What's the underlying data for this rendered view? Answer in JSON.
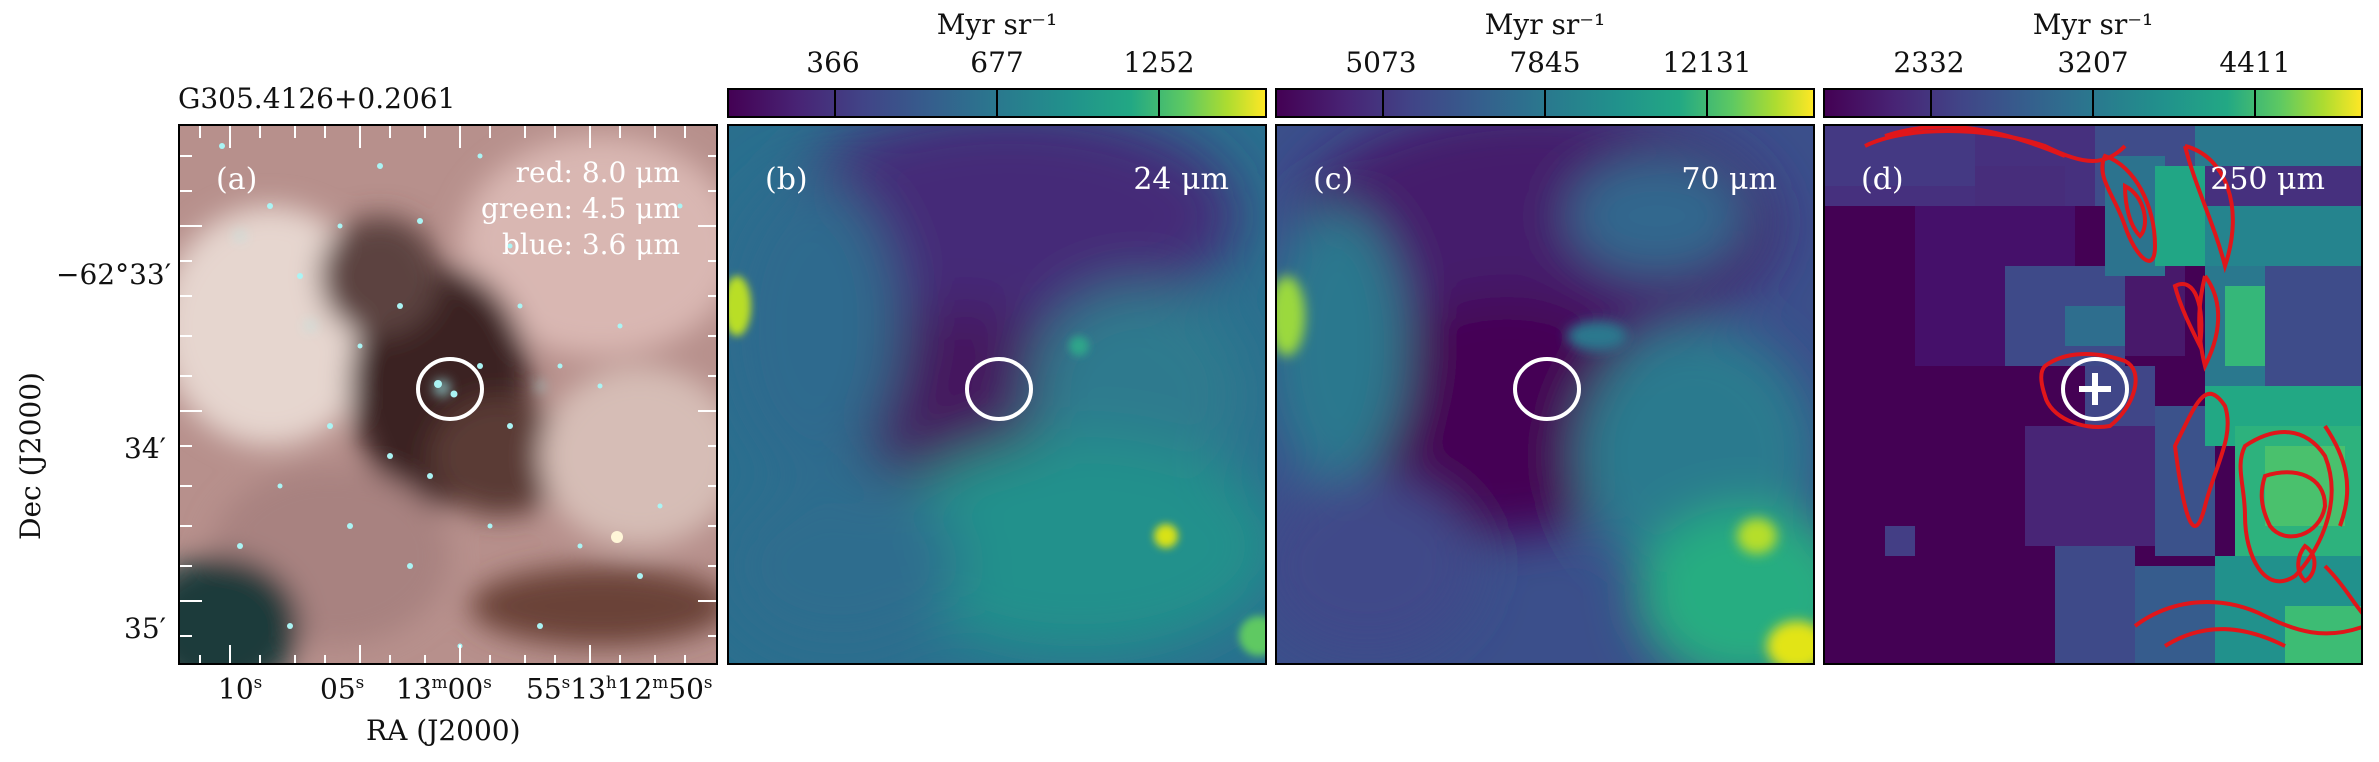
{
  "source_name": "G305.4126+0.2061",
  "panels": [
    {
      "label": "(a)",
      "rgb": {
        "red": "red: 8.0 μm",
        "green": "green: 4.5 μm",
        "blue": "blue: 3.6 μm"
      }
    },
    {
      "label": "(b)",
      "band": "24 μm",
      "colorbar_unit": "Myr sr⁻¹",
      "colorbar_ticks": [
        "366",
        "677",
        "1252"
      ]
    },
    {
      "label": "(c)",
      "band": "70 μm",
      "colorbar_unit": "Myr sr⁻¹",
      "colorbar_ticks": [
        "5073",
        "7845",
        "12131"
      ]
    },
    {
      "label": "(d)",
      "band": "250 μm",
      "colorbar_unit": "Myr sr⁻¹",
      "colorbar_ticks": [
        "2332",
        "3207",
        "4411"
      ]
    }
  ],
  "axes": {
    "ylabel": "Dec (J2000)",
    "yticks": [
      "−62°33′",
      "34′",
      "35′"
    ],
    "xlabel": "RA (J2000)",
    "xticks": [
      {
        "num": "10",
        "unit": "s"
      },
      {
        "num": "05",
        "unit": "s"
      },
      {
        "num": "13",
        "unit": "m",
        "rest": "00",
        "unit2": "s"
      },
      {
        "num": "55",
        "unit": "s",
        "rest": "13",
        "unit2": "h",
        "rest2": "12",
        "unit3": "m",
        "rest3": "50",
        "unit4": "s"
      }
    ]
  },
  "colors": {
    "viridis_dark": "#440154",
    "viridis_teal": "#21918c",
    "viridis_yellow": "#fde725",
    "contour": "#e0161a",
    "marker": "#ffffff"
  }
}
